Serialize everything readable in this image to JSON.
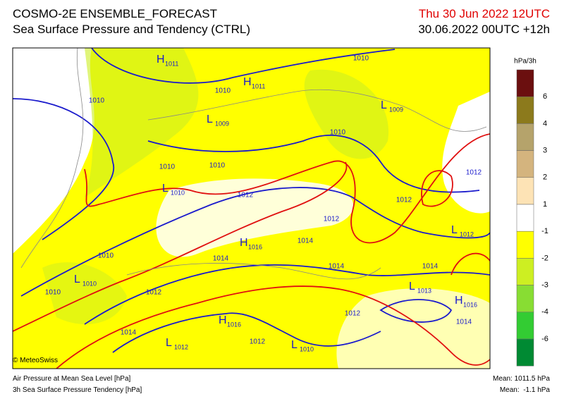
{
  "header": {
    "title": "COSMO-2E ENSEMBLE_FORECAST",
    "subtitle": "Sea Surface Pressure and Tendency (CTRL)",
    "valid_time": "Thu 30 Jun 2022 12UTC",
    "run": "30.06.2022 00UTC +12h"
  },
  "pressure_centers": [
    {
      "letter": "H",
      "value": 1011
    },
    {
      "letter": "H",
      "value": 1011
    },
    {
      "letter": "L",
      "value": 1009
    },
    {
      "letter": "L",
      "value": 1009
    },
    {
      "letter": "L",
      "value": 1010
    },
    {
      "letter": "H",
      "value": 1016
    },
    {
      "letter": "L",
      "value": 1010
    },
    {
      "letter": "L",
      "value": 1013
    },
    {
      "letter": "H",
      "value": 1016
    },
    {
      "letter": "H",
      "value": 1016
    },
    {
      "letter": "L",
      "value": 1012
    },
    {
      "letter": "L",
      "value": 1010
    },
    {
      "letter": "L",
      "value": 1012
    }
  ],
  "contour_labels": [
    1010,
    1010,
    1010,
    1010,
    1010,
    1010,
    1012,
    1012,
    1012,
    1012,
    1014,
    1014,
    1010,
    1010,
    1012,
    1014,
    1014,
    1014,
    1012,
    1012,
    1014
  ],
  "colorbar": {
    "unit": "hPa/3h",
    "ticks": [
      6,
      4,
      3,
      2,
      1,
      -1,
      -2,
      -3,
      -4,
      -6
    ],
    "colors": [
      "#6b0f0f",
      "#8c7a1c",
      "#b5a36b",
      "#d4b47e",
      "#fde3b5",
      "#ffffff",
      "#ffff00",
      "#cdef22",
      "#88dd33",
      "#33cc33",
      "#008a33"
    ]
  },
  "footer": {
    "credit": "© MeteoSwiss",
    "line1": "Air Pressure at Mean Sea Level [hPa]",
    "line2": "3h Sea Surface Pressure Tendency [hPa]",
    "mean1": "Mean: 1011.5 hPa",
    "mean2": "Mean:  -1.1 hPa"
  }
}
